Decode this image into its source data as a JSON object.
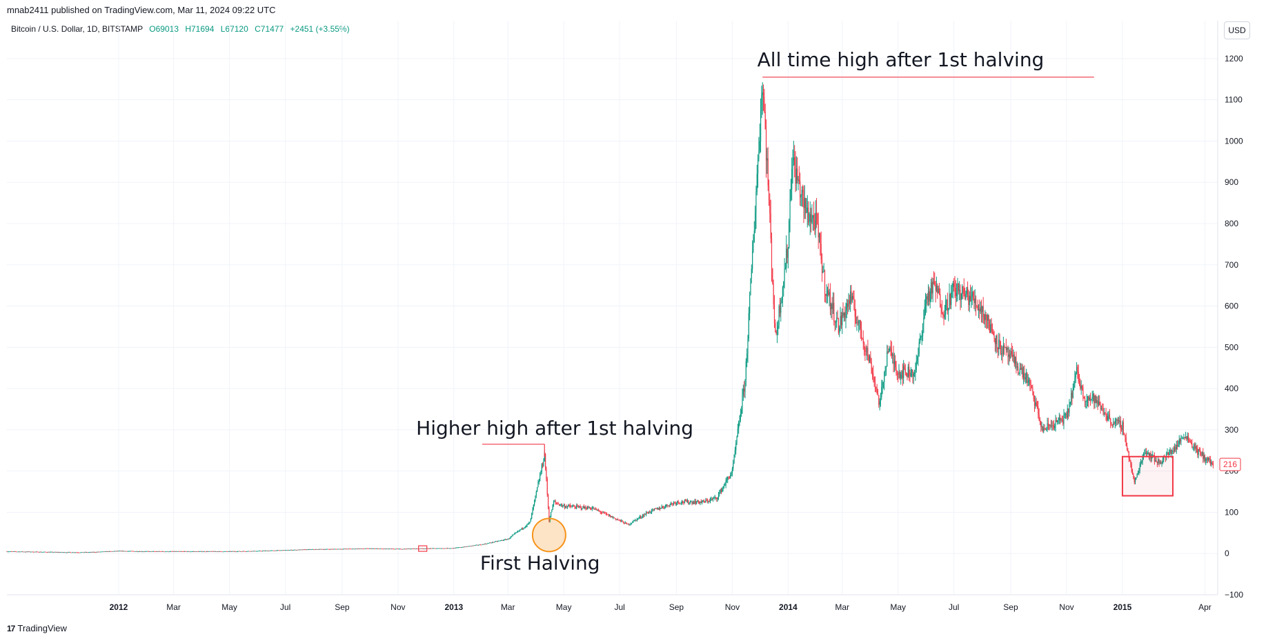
{
  "header": {
    "published": "mnab2411 published on TradingView.com, Mar 11, 2024 09:22 UTC",
    "symbol": "Bitcoin / U.S. Dollar, 1D, BITSTAMP",
    "open": "O69013",
    "high": "H71694",
    "low": "L67120",
    "close": "C71477",
    "change": "+2451 (+3.55%)",
    "currency_button": "USD"
  },
  "footer": {
    "brand": "TradingView",
    "logo_glyph": "17"
  },
  "colors": {
    "up": "#089981",
    "down": "#f23645",
    "annotation": "#f23645",
    "halving_circle": "#f7931a",
    "grid": "#f0f3fa"
  },
  "chart_data": {
    "type": "candlestick",
    "title": "",
    "xlabel": "",
    "ylabel": "",
    "ylim": [
      -100,
      1250
    ],
    "y_ticks": [
      "1200",
      "1100",
      "1000",
      "900",
      "800",
      "700",
      "600",
      "500",
      "400",
      "300",
      "200",
      "100",
      "0",
      "−100"
    ],
    "x_ticks": [
      "2012",
      "Mar",
      "May",
      "Jul",
      "Sep",
      "Nov",
      "2013",
      "Mar",
      "May",
      "Jul",
      "Sep",
      "Nov",
      "2014",
      "Mar",
      "May",
      "Jul",
      "Sep",
      "Nov",
      "2015",
      "Apr"
    ],
    "x_tick_dates": [
      "2012-01-01",
      "2012-03-01",
      "2012-05-01",
      "2012-07-01",
      "2012-09-01",
      "2012-11-01",
      "2013-01-01",
      "2013-03-01",
      "2013-05-01",
      "2013-07-01",
      "2013-09-01",
      "2013-11-01",
      "2014-01-01",
      "2014-03-01",
      "2014-05-01",
      "2014-07-01",
      "2014-09-01",
      "2014-11-01",
      "2015-01-01",
      "2015-04-01"
    ],
    "x_range": [
      "2011-09-01",
      "2015-04-15"
    ],
    "last_price_label": "216",
    "series": [
      {
        "name": "BTCUSD close",
        "points": [
          [
            "2011-09-01",
            5
          ],
          [
            "2011-10-01",
            4
          ],
          [
            "2011-11-01",
            3
          ],
          [
            "2011-12-01",
            3
          ],
          [
            "2012-01-01",
            6
          ],
          [
            "2012-02-01",
            5
          ],
          [
            "2012-03-01",
            5
          ],
          [
            "2012-04-01",
            5
          ],
          [
            "2012-05-01",
            5
          ],
          [
            "2012-06-01",
            6
          ],
          [
            "2012-07-01",
            8
          ],
          [
            "2012-08-01",
            10
          ],
          [
            "2012-09-01",
            11
          ],
          [
            "2012-10-01",
            12
          ],
          [
            "2012-11-01",
            11
          ],
          [
            "2012-11-28",
            12
          ],
          [
            "2013-01-01",
            13
          ],
          [
            "2013-02-01",
            22
          ],
          [
            "2013-03-01",
            35
          ],
          [
            "2013-03-25",
            75
          ],
          [
            "2013-04-10",
            240
          ],
          [
            "2013-04-15",
            80
          ],
          [
            "2013-04-20",
            125
          ],
          [
            "2013-05-01",
            115
          ],
          [
            "2013-06-01",
            110
          ],
          [
            "2013-07-01",
            80
          ],
          [
            "2013-07-10",
            70
          ],
          [
            "2013-08-01",
            100
          ],
          [
            "2013-09-01",
            125
          ],
          [
            "2013-10-01",
            125
          ],
          [
            "2013-10-15",
            135
          ],
          [
            "2013-11-01",
            200
          ],
          [
            "2013-11-15",
            420
          ],
          [
            "2013-11-25",
            800
          ],
          [
            "2013-12-04",
            1150
          ],
          [
            "2013-12-10",
            900
          ],
          [
            "2013-12-18",
            520
          ],
          [
            "2014-01-01",
            750
          ],
          [
            "2014-01-05",
            960
          ],
          [
            "2014-01-20",
            830
          ],
          [
            "2014-02-01",
            800
          ],
          [
            "2014-02-10",
            650
          ],
          [
            "2014-02-25",
            550
          ],
          [
            "2014-03-10",
            620
          ],
          [
            "2014-04-01",
            460
          ],
          [
            "2014-04-11",
            360
          ],
          [
            "2014-04-20",
            500
          ],
          [
            "2014-05-01",
            440
          ],
          [
            "2014-05-20",
            440
          ],
          [
            "2014-06-01",
            620
          ],
          [
            "2014-06-10",
            650
          ],
          [
            "2014-06-20",
            590
          ],
          [
            "2014-07-01",
            640
          ],
          [
            "2014-07-20",
            620
          ],
          [
            "2014-08-01",
            590
          ],
          [
            "2014-08-20",
            500
          ],
          [
            "2014-09-01",
            475
          ],
          [
            "2014-09-20",
            420
          ],
          [
            "2014-10-01",
            340
          ],
          [
            "2014-10-05",
            300
          ],
          [
            "2014-11-01",
            330
          ],
          [
            "2014-11-12",
            440
          ],
          [
            "2014-11-20",
            380
          ],
          [
            "2014-12-01",
            375
          ],
          [
            "2014-12-20",
            320
          ],
          [
            "2015-01-01",
            310
          ],
          [
            "2015-01-14",
            170
          ],
          [
            "2015-01-25",
            250
          ],
          [
            "2015-02-10",
            220
          ],
          [
            "2015-03-01",
            260
          ],
          [
            "2015-03-10",
            290
          ],
          [
            "2015-03-25",
            245
          ],
          [
            "2015-04-10",
            216
          ]
        ]
      }
    ],
    "annotations": [
      {
        "text": "All time high after 1st halving",
        "type": "horizontal_line",
        "date_from": "2013-12-04",
        "date_to": "2014-12-01",
        "price": 1155
      },
      {
        "text": "Higher high after 1st halving",
        "type": "horizontal_line",
        "date_from": "2013-02-01",
        "date_to": "2013-04-10",
        "price": 265
      },
      {
        "text": "First Halving",
        "type": "circle",
        "date": "2013-04-15",
        "price": 45
      },
      {
        "text": "",
        "type": "small_rectangle",
        "date": "2012-11-28",
        "price": 12
      },
      {
        "text": "",
        "type": "rectangle",
        "date_from": "2015-01-01",
        "date_to": "2015-02-25",
        "price_from": 140,
        "price_to": 235
      }
    ]
  }
}
